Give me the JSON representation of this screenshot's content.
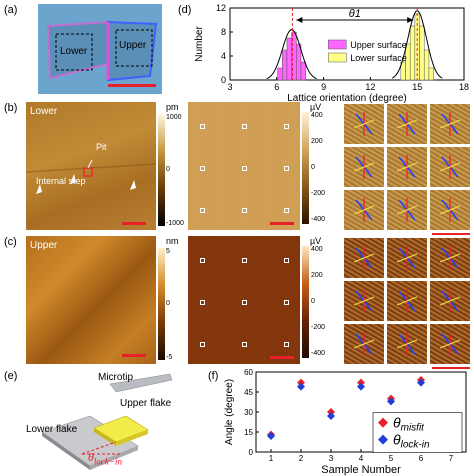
{
  "panels": {
    "a": {
      "label": "(a)",
      "lower": "Lower",
      "upper": "Upper"
    },
    "b": {
      "label": "(b)",
      "region": "Lower",
      "pit": "Pit",
      "internal_step": "Internal step",
      "cbar_unit": "pm",
      "cbar_top": "1000",
      "cbar_zero": "0",
      "cbar_bottom": "-1000",
      "signal_unit": "µV",
      "signal_ticks": [
        "400",
        "200",
        "0",
        "-200",
        "-400"
      ]
    },
    "c": {
      "label": "(c)",
      "region": "Upper",
      "cbar_unit": "nm",
      "cbar_top": "5",
      "cbar_zero": "0",
      "cbar_bottom": "-5",
      "signal_unit": "µV",
      "signal_ticks": [
        "400",
        "200",
        "0",
        "-200",
        "-400"
      ]
    },
    "d": {
      "label": "(d)"
    },
    "e": {
      "label": "(e)",
      "microtip": "Microtip",
      "upper_flake": "Upper flake",
      "lower_flake": "Lower flake",
      "theta": "θ",
      "theta_sub": "lock−in"
    },
    "f": {
      "label": "(f)"
    }
  },
  "colors": {
    "accent_red": "#e8202a",
    "magenta": "#ff66ff",
    "yellow": "#ffff88",
    "blue_marker": "#1f3fd8"
  },
  "chart_data": [
    {
      "type": "bar",
      "panel": "d",
      "xlabel": "Lattice orientation (degree)",
      "ylabel": "Number",
      "xlim": [
        3,
        18
      ],
      "ylim": [
        0,
        12
      ],
      "xticks": [
        "3",
        "6",
        "9",
        "12",
        "15",
        "18"
      ],
      "yticks": [
        "0",
        "4",
        "8",
        "12"
      ],
      "annotation": "θ1",
      "legend_position": "center-right",
      "series": [
        {
          "name": "Upper surface",
          "color": "#ff66ff",
          "x": [
            6.2,
            6.5,
            6.8,
            7.1,
            7.4,
            7.7
          ],
          "values": [
            2,
            5,
            7,
            8,
            6,
            3
          ]
        },
        {
          "name": "Lower surface",
          "color": "#ffff88",
          "x": [
            14.1,
            14.4,
            14.7,
            15.0,
            15.3,
            15.6,
            15.9
          ],
          "values": [
            3,
            6,
            9,
            11,
            9,
            5,
            2
          ]
        }
      ],
      "dashed_lines": [
        7.0,
        15.0
      ]
    },
    {
      "type": "scatter",
      "panel": "f",
      "xlabel": "Sample Number",
      "ylabel": "Angle (degree)",
      "xlim": [
        0.5,
        7.5
      ],
      "ylim": [
        0,
        60
      ],
      "xticks": [
        "1",
        "2",
        "3",
        "4",
        "5",
        "6",
        "7"
      ],
      "yticks": [
        "0",
        "15",
        "30",
        "45",
        "60"
      ],
      "legend_position": "bottom-right",
      "x": [
        1,
        2,
        3,
        4,
        5,
        6,
        7
      ],
      "series": [
        {
          "name_main": "θ",
          "name_sub": "misfit",
          "color": "#e8202a",
          "marker": "diamond",
          "values": [
            13,
            52,
            30,
            52,
            40,
            54,
            15
          ]
        },
        {
          "name_main": "θ",
          "name_sub": "lock-in",
          "color": "#1f3fd8",
          "marker": "diamond",
          "values": [
            12,
            49,
            27,
            49,
            38,
            52,
            13
          ]
        }
      ]
    }
  ]
}
